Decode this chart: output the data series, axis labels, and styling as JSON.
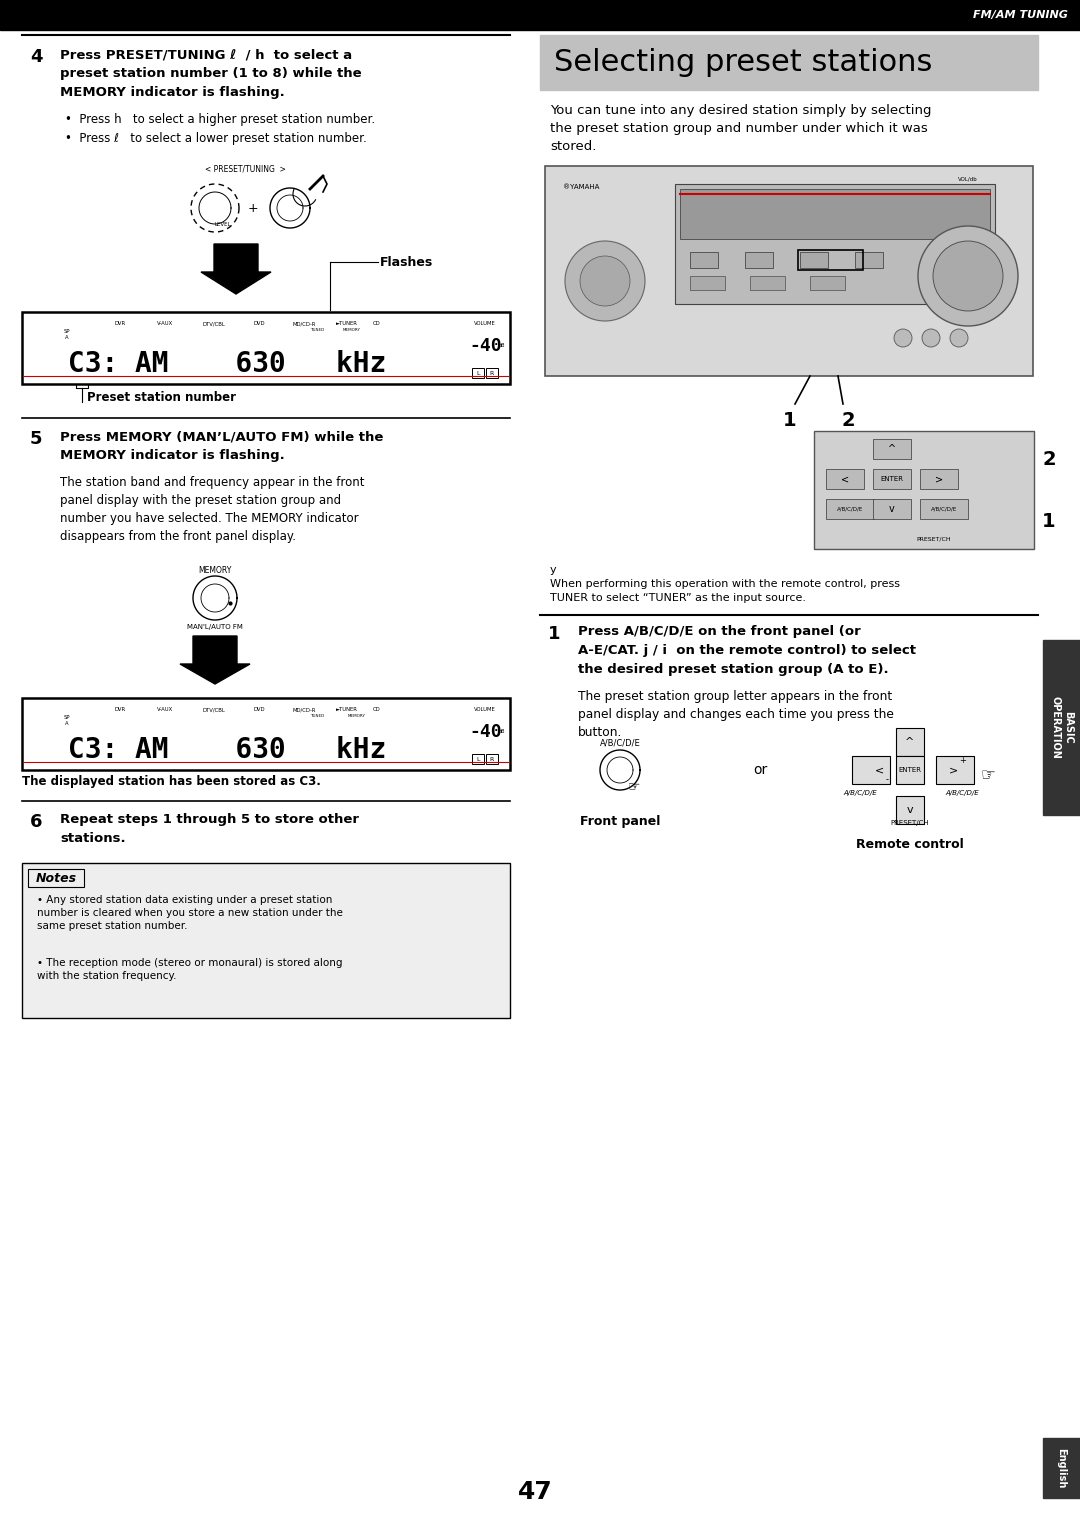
{
  "page_number": "47",
  "header_text": "FM/AM TUNING",
  "header_bg": "#000000",
  "header_text_color": "#ffffff",
  "right_tab_text": "BASIC\nOPERATION",
  "right_tab_bg": "#333333",
  "bottom_tab_text": "English",
  "bottom_tab_bg": "#333333",
  "bg_color": "#ffffff",
  "sec4_num": "4",
  "sec4_line1": "Press PRESET/TUNING ℓ  / h  to select a",
  "sec4_line2": "preset station number (1 to 8) while the",
  "sec4_line3": "MEMORY indicator is flashing.",
  "sec4_b1": "Press h   to select a higher preset station number.",
  "sec4_b2": "Press ℓ   to select a lower preset station number.",
  "sec4_flashes": "Flashes",
  "sec4_display": "C3: AM    630   kHz",
  "sec4_preset_label": "Preset station number",
  "sec5_num": "5",
  "sec5_line1": "Press MEMORY (MAN’L/AUTO FM) while the",
  "sec5_line2": "MEMORY indicator is flashing.",
  "sec5_body": "The station band and frequency appear in the front\npanel display with the preset station group and\nnumber you have selected. The MEMORY indicator\ndisappears from the front panel display.",
  "sec5_display": "C3: AM    630   kHz",
  "sec5_stored": "The displayed station has been stored as C3.",
  "sec6_num": "6",
  "sec6_line1": "Repeat steps 1 through 5 to store other",
  "sec6_line2": "stations.",
  "notes_title": "Notes",
  "notes_b1": "Any stored station data existing under a preset station\nnumber is cleared when you store a new station under the\nsame preset station number.",
  "notes_b2": "The reception mode (stereo or monaural) is stored along\nwith the station frequency.",
  "right_title": "Selecting preset stations",
  "right_title_bg": "#c8c8c8",
  "right_intro1": "You can tune into any desired station simply by selecting",
  "right_intro2": "the preset station group and number under which it was",
  "right_intro3": "stored.",
  "right_footnote_sym": "y",
  "right_footnote1": "When performing this operation with the remote control, press",
  "right_footnote2": "TUNER to select “TUNER” as the input source.",
  "step1_num": "1",
  "step1_line1": "Press A/B/C/D/E on the front panel (or",
  "step1_line2": "A-E/CAT. j / i  on the remote control) to select",
  "step1_line3": "the desired preset station group (A to E).",
  "step1_body": "The preset station group letter appears in the front\npanel display and changes each time you press the\nbutton.",
  "step1_fp_label": "A/B/C/D/E",
  "step1_or": "or",
  "step1_fp_text": "Front panel",
  "step1_rc_text": "Remote control"
}
